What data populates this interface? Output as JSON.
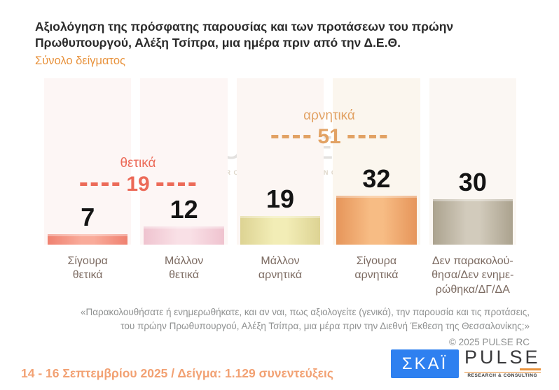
{
  "header": {
    "title": "Αξιολόγηση της πρόσφατης παρουσίας και των προτάσεων του πρώην\nΠρωθυπουργού, Αλέξη Τσίπρα, μια ημέρα πριν από την Δ.Ε.Θ.",
    "subtitle": "Σύνολο δείγματος"
  },
  "chart_data": {
    "type": "bar",
    "title": "Αξιολόγηση της πρόσφατης παρουσίας και των προτάσεων του πρώην Πρωθυπουργού, Αλέξη Τσίπρα, μια ημέρα πριν από την Δ.Ε.Θ. — Σύνολο δείγματος",
    "categories": [
      "Σίγουρα θετικά",
      "Μάλλον θετικά",
      "Μάλλον αρνητικά",
      "Σίγουρα αρνητικά",
      "Δεν παρακολούθησα/Δεν ενημερώθηκα/ΔΓ/ΔΑ"
    ],
    "category_labels_display": [
      "Σίγουρα\nθετικά",
      "Μάλλον\nθετικά",
      "Μάλλον\nαρνητικά",
      "Σίγουρα\nαρνητικά",
      "Δεν παρακολού-\nθησα/Δεν ενημε-\nρώθηκα/ΔΓ/ΔΑ"
    ],
    "values": [
      7,
      12,
      19,
      32,
      30
    ],
    "unit": "%",
    "ylim": [
      0,
      109
    ],
    "grid": false,
    "legend": false,
    "bar_colors": [
      {
        "edge": "#ef8170",
        "center": "#f9ab9a"
      },
      {
        "edge": "#efc3cf",
        "center": "#f9e0e6"
      },
      {
        "edge": "#ddd393",
        "center": "#f2edb6"
      },
      {
        "edge": "#e6955a",
        "center": "#f7bc84"
      },
      {
        "edge": "#aba28e",
        "center": "#d2cbbc"
      }
    ],
    "column_tints": [
      "#fdf6f5",
      "#fdf6f5",
      "#fcf6f3",
      "#fbf6ee",
      "#fbf7f3"
    ],
    "annotations": [
      {
        "label": "θετικά",
        "value": "19",
        "color": "#ec6a58",
        "covers": "Σίγουρα θετικά + Μάλλον θετικά"
      },
      {
        "label": "αρνητικά",
        "value": "51",
        "color": "#e2a264",
        "covers": "Μάλλον αρνητικά + Σίγουρα αρνητικά"
      }
    ]
  },
  "watermark": {
    "brand": "PULSE",
    "tagline": "RESEARCH & CONSULTING"
  },
  "footer": {
    "quote_line1": "«Παρακολουθήσατε ή ενημερωθήκατε, και αν ναι, πως αξιολογείτε (γενικά), την παρουσία και τις προτάσεις,",
    "quote_line2": "του πρώην Πρωθυπουργού, Αλέξη Τσίπρα, μια μέρα πριν την Διεθνή Έκθεση της Θεσσαλονίκης;»",
    "copyright": "©  2025  PULSE RC"
  },
  "bottombar": {
    "fieldwork": "14 - 16 Σεπτεμβρίου 2025  /  Δείγμα:  1.129 συνεντεύξεις",
    "skai_logo_text": "ΣΚΑΪ",
    "pulse_logo_text": "PULSE",
    "pulse_logo_tagline": "RESEARCH & CONSULTING"
  },
  "colors": {
    "title": "#2b2b2b",
    "subtitle_accent": "#e8923c",
    "positive_accent": "#ec6a58",
    "negative_accent": "#e2a264",
    "category_label": "#7d6c63",
    "quote_text": "#8f9191",
    "fieldwork_text": "#f2a173",
    "skai_blue": "#2e80f0"
  }
}
